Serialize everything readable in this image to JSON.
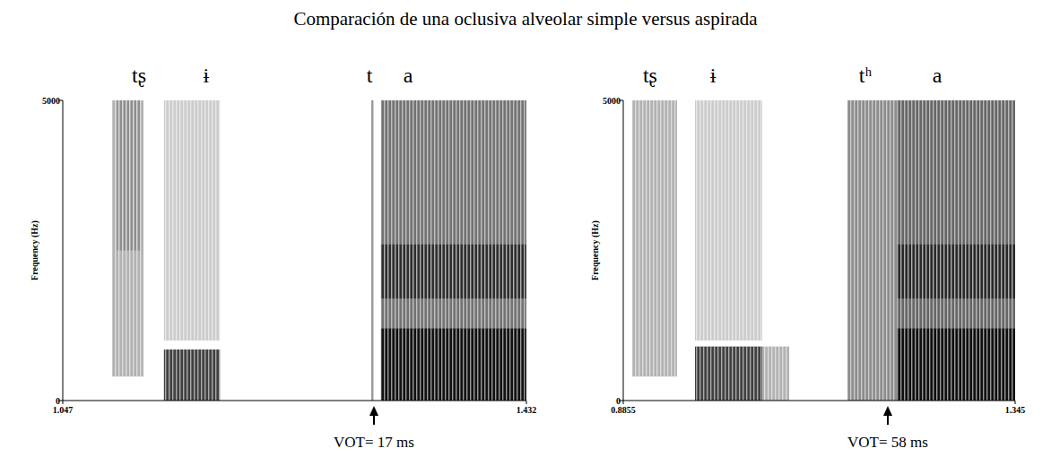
{
  "title": "Comparación de una oclusiva alveolar simple versus aspirada",
  "chart_data": [
    {
      "type": "spectrogram",
      "y_label": "Frequency (Hz)",
      "xlim": [
        1.047,
        1.432
      ],
      "xticks": [
        1.047,
        1.432
      ],
      "ylim": [
        0,
        5000
      ],
      "yticks": [
        0,
        5000
      ],
      "segments": [
        {
          "label": "tʂ",
          "x": 1.1103
        },
        {
          "label": "ɨ",
          "x": 1.1661
        },
        {
          "label": "t",
          "x": 1.3017
        },
        {
          "label": "a",
          "x": 1.3337
        }
      ],
      "regions": [
        {
          "t0": 1.088,
          "t1": 1.114,
          "f0": 400,
          "f1": 5000,
          "intensity": 0.3
        },
        {
          "t0": 1.092,
          "t1": 1.112,
          "f0": 2500,
          "f1": 5000,
          "intensity": 0.2
        },
        {
          "t0": 1.131,
          "t1": 1.1775,
          "f0": 1000,
          "f1": 5000,
          "intensity": 0.2
        },
        {
          "t0": 1.131,
          "t1": 1.1775,
          "f0": 0,
          "f1": 850,
          "intensity": 0.75
        },
        {
          "t0": 1.3032,
          "t1": 1.3054,
          "f0": 0,
          "f1": 5000,
          "intensity": 0.4
        },
        {
          "t0": 1.3113,
          "t1": 1.432,
          "f0": 0,
          "f1": 5000,
          "intensity": 0.55
        },
        {
          "t0": 1.3113,
          "t1": 1.432,
          "f0": 0,
          "f1": 1200,
          "intensity": 0.85
        },
        {
          "t0": 1.3113,
          "t1": 1.432,
          "f0": 1700,
          "f1": 2600,
          "intensity": 0.6
        }
      ],
      "annotation": {
        "text": "VOT= 17 ms",
        "x": 1.3054
      }
    },
    {
      "type": "spectrogram",
      "y_label": "Frequency (Hz)",
      "xlim": [
        0.8855,
        1.345
      ],
      "xticks": [
        0.8855,
        1.345
      ],
      "ylim": [
        0,
        5000
      ],
      "yticks": [
        0,
        5000
      ],
      "segments": [
        {
          "label": "tʂ",
          "x": 0.917
        },
        {
          "label": "ɨ",
          "x": 0.9907
        },
        {
          "label": "tʰ",
          "x": 1.1694
        },
        {
          "label": "a",
          "x": 1.2535
        }
      ],
      "regions": [
        {
          "t0": 0.896,
          "t1": 0.9486,
          "f0": 400,
          "f1": 5000,
          "intensity": 0.3
        },
        {
          "t0": 0.9696,
          "t1": 1.0485,
          "f0": 1000,
          "f1": 5000,
          "intensity": 0.2
        },
        {
          "t0": 0.9696,
          "t1": 1.0485,
          "f0": 0,
          "f1": 900,
          "intensity": 0.75
        },
        {
          "t0": 1.0485,
          "t1": 1.0801,
          "f0": 0,
          "f1": 900,
          "intensity": 0.3
        },
        {
          "t0": 1.1484,
          "t1": 1.2062,
          "f0": 0,
          "f1": 5000,
          "intensity": 0.45
        },
        {
          "t0": 1.2062,
          "t1": 1.345,
          "f0": 0,
          "f1": 5000,
          "intensity": 0.6
        },
        {
          "t0": 1.2062,
          "t1": 1.345,
          "f0": 0,
          "f1": 1200,
          "intensity": 0.85
        },
        {
          "t0": 1.2062,
          "t1": 1.345,
          "f0": 1700,
          "f1": 2600,
          "intensity": 0.6
        }
      ],
      "annotation": {
        "text": "VOT= 58 ms",
        "x": 1.1957
      }
    }
  ]
}
